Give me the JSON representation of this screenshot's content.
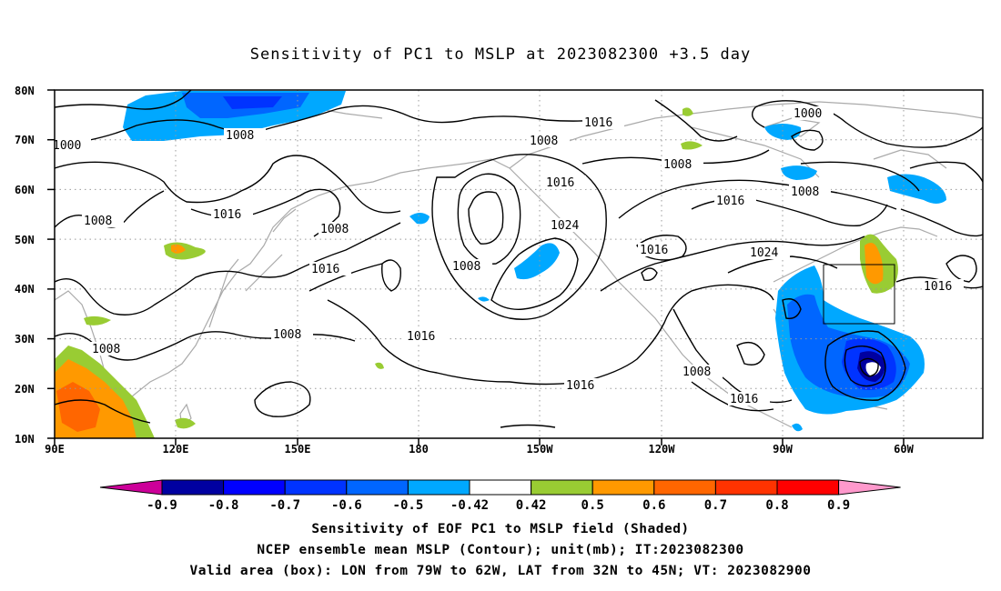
{
  "title": "Sensitivity of PC1 to MSLP at 2023082300 +3.5 day",
  "lat_labels": [
    "80N",
    "70N",
    "60N",
    "50N",
    "40N",
    "30N",
    "20N",
    "10N"
  ],
  "lon_labels": [
    "90E",
    "120E",
    "150E",
    "180",
    "150W",
    "120W",
    "90W",
    "60W"
  ],
  "contour_labels": [
    "1000",
    "1008",
    "1016",
    "1008",
    "1008",
    "1016",
    "1008",
    "1016",
    "1024",
    "1008",
    "1016",
    "1016",
    "1016",
    "1008",
    "1016",
    "1008",
    "1016",
    "1000",
    "1008",
    "1024",
    "1016"
  ],
  "colorbar": {
    "labels": [
      "-0.9",
      "-0.8",
      "-0.7",
      "-0.6",
      "-0.5",
      "-0.42",
      "0.42",
      "0.5",
      "0.6",
      "0.7",
      "0.8",
      "0.9"
    ],
    "colors": [
      "#0000a0",
      "#0000ff",
      "#0033ff",
      "#0066ff",
      "#00a8ff",
      "#ffffff",
      "#99cc33",
      "#ff9900",
      "#ff6600",
      "#ff3300",
      "#ff0000"
    ],
    "low_color": "#cc0099",
    "high_color": "#ff99cc"
  },
  "valid_box": {
    "lon_from": "79W",
    "lon_to": "62W",
    "lat_from": "32N",
    "lat_to": "45N"
  },
  "caption": {
    "line1": "Sensitivity of EOF PC1 to MSLP field (Shaded)",
    "line2": "NCEP ensemble mean MSLP (Contour); unit(mb); IT:2023082300",
    "line3": "Valid area (box): LON from 79W to 62W, LAT from 32N to 45N; VT: 2023082900"
  }
}
